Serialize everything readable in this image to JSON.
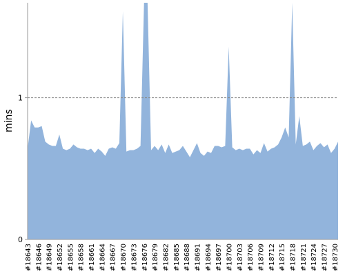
{
  "chart_data": {
    "type": "area",
    "ylabel": "mins",
    "ylim": [
      0,
      1.67
    ],
    "y_ticks": [
      {
        "value": 0,
        "label": "0"
      },
      {
        "value": 1,
        "label": "1"
      }
    ],
    "reference_line": {
      "value": 1,
      "style": "dashed"
    },
    "grid": false,
    "legend": "none",
    "colors": {
      "area": "#92b4dc",
      "axis": "#999999",
      "reference_line": "#888888"
    },
    "x_tick_labels": [
      "#18643",
      "#18646",
      "#18649",
      "#18652",
      "#18655",
      "#18658",
      "#18661",
      "#18664",
      "#18667",
      "#18670",
      "#18673",
      "#18676",
      "#18679",
      "#18682",
      "#18685",
      "#18688",
      "#18691",
      "#18694",
      "#18697",
      "#18700",
      "#18703",
      "#18706",
      "#18709",
      "#18712",
      "#18715",
      "#18718",
      "#18721",
      "#18724",
      "#18727",
      "#18730"
    ],
    "x": [
      18643,
      18644,
      18645,
      18646,
      18647,
      18648,
      18649,
      18650,
      18651,
      18652,
      18653,
      18654,
      18655,
      18656,
      18657,
      18658,
      18659,
      18660,
      18661,
      18662,
      18663,
      18664,
      18665,
      18666,
      18667,
      18668,
      18669,
      18670,
      18671,
      18672,
      18673,
      18674,
      18675,
      18676,
      18677,
      18678,
      18679,
      18680,
      18681,
      18682,
      18683,
      18684,
      18685,
      18686,
      18687,
      18688,
      18689,
      18690,
      18691,
      18692,
      18693,
      18694,
      18695,
      18696,
      18697,
      18698,
      18699,
      18700,
      18701,
      18702,
      18703,
      18704,
      18705,
      18706,
      18707,
      18708,
      18709,
      18710,
      18711,
      18712,
      18713,
      18714,
      18715,
      18716,
      18717,
      18718,
      18719,
      18720,
      18721,
      18722,
      18723,
      18724,
      18725,
      18726,
      18727,
      18728,
      18729,
      18730,
      18731
    ],
    "values": [
      0.64,
      0.84,
      0.79,
      0.79,
      0.8,
      0.69,
      0.67,
      0.66,
      0.66,
      0.74,
      0.64,
      0.63,
      0.64,
      0.67,
      0.65,
      0.64,
      0.64,
      0.63,
      0.64,
      0.61,
      0.64,
      0.62,
      0.59,
      0.64,
      0.65,
      0.64,
      0.68,
      1.61,
      0.62,
      0.63,
      0.63,
      0.64,
      0.66,
      1.7,
      1.7,
      0.63,
      0.66,
      0.63,
      0.67,
      0.61,
      0.67,
      0.61,
      0.62,
      0.63,
      0.66,
      0.62,
      0.58,
      0.63,
      0.68,
      0.61,
      0.59,
      0.62,
      0.61,
      0.66,
      0.66,
      0.65,
      0.66,
      1.36,
      0.65,
      0.63,
      0.64,
      0.63,
      0.64,
      0.64,
      0.6,
      0.63,
      0.61,
      0.68,
      0.62,
      0.64,
      0.65,
      0.67,
      0.72,
      0.79,
      0.72,
      1.7,
      0.67,
      0.87,
      0.66,
      0.67,
      0.69,
      0.63,
      0.66,
      0.68,
      0.65,
      0.67,
      0.61,
      0.64,
      0.69
    ]
  }
}
